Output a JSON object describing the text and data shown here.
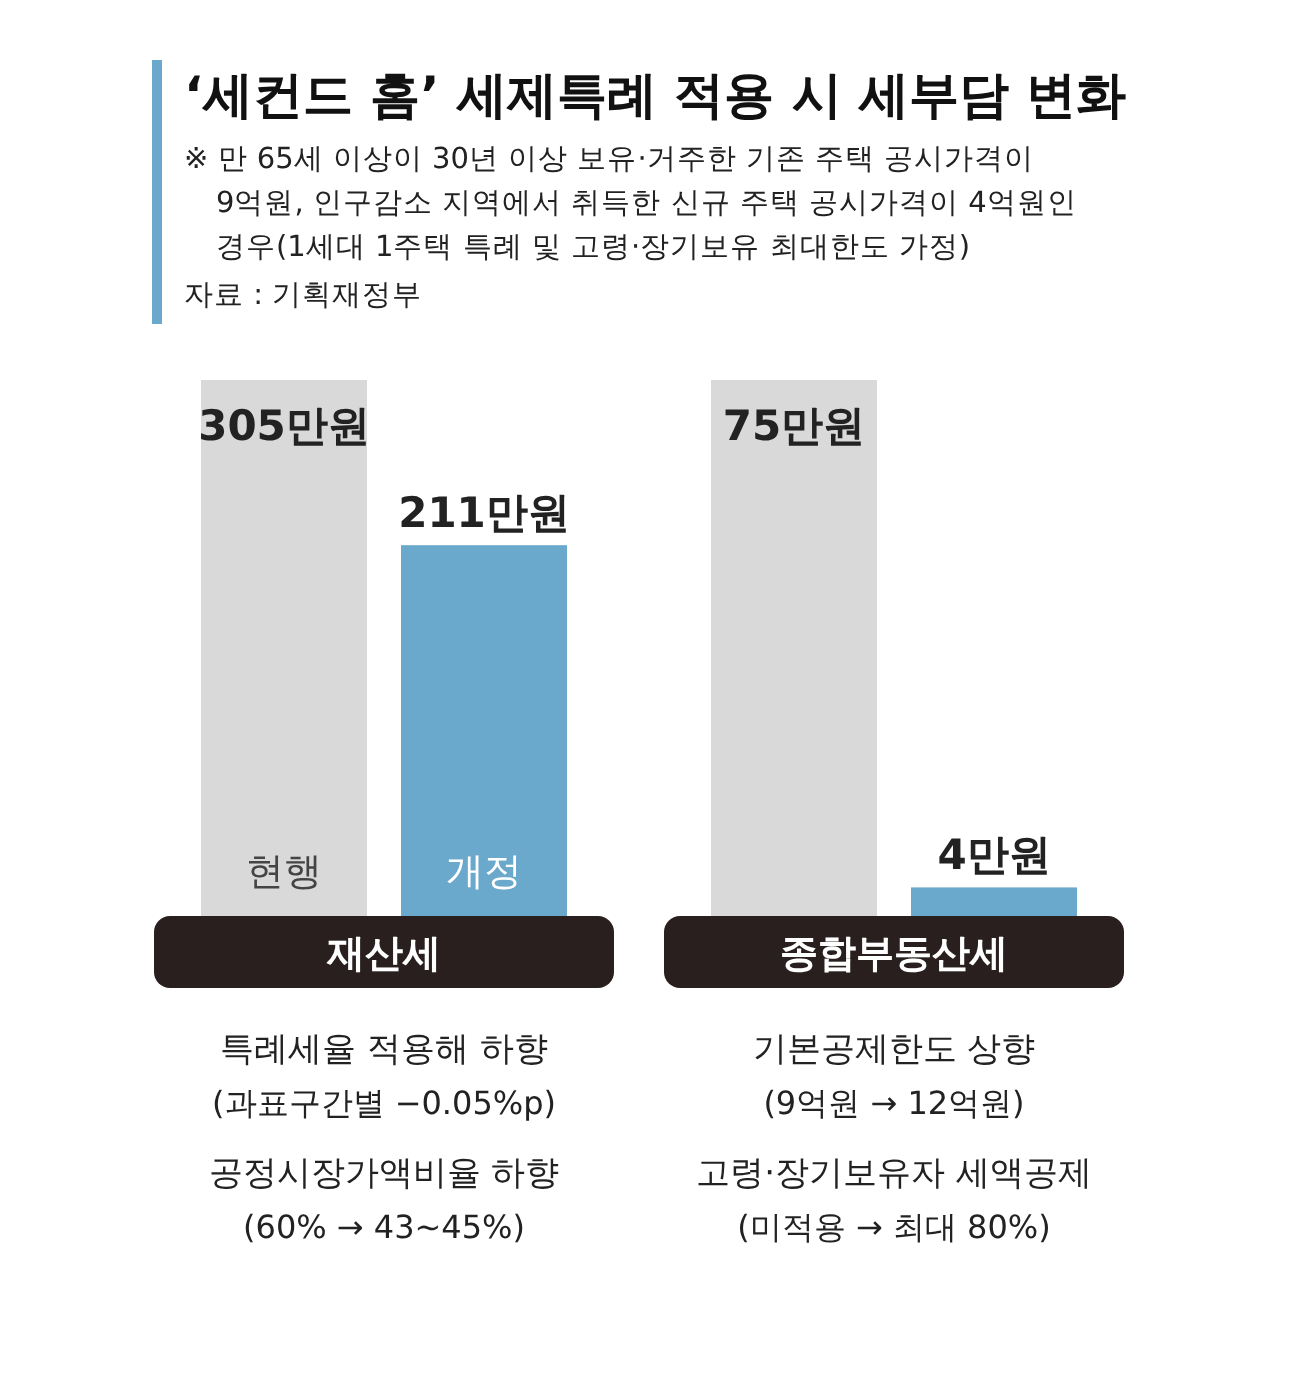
{
  "chart_data": [
    {
      "type": "bar",
      "title": "‘세컨드 홈’ 세제특례 적용 시 세부담 변화",
      "subtitle": "※ 만 65세 이상이 30년 이상 보유·거주한 기존 주택 공시가격이 9억원, 인구감소 지역에서 취득한 신규 주택 공시가격이 4억원인 경우(1세대 1주택 특례 및 고령·장기보유 최대한도 가정)",
      "xlabel": "재산세",
      "categories": [
        "현행",
        "개정"
      ],
      "values": [
        305,
        211
      ],
      "colors": [
        "#d9d9d9",
        "#6aa8cc"
      ],
      "value_labels": [
        "305만원",
        "211만원"
      ],
      "annotations": [
        "자료 : 기획재정부",
        "특례세율 적용해 하향",
        "(과표구간별 −0.05%p)",
        "공정시장가액비율 하향",
        "(60% → 43~45%)"
      ]
    },
    {
      "type": "bar",
      "xlabel": "종합부동산세",
      "categories": [
        null,
        null
      ],
      "values": [
        75,
        4
      ],
      "colors": [
        "#d9d9d9",
        "#6aa8cc"
      ],
      "value_labels": [
        "75만원",
        "4만원"
      ],
      "annotations": [
        "기본공제한도 상향",
        "(9억원 → 12억원)",
        "고령·장기보유자 세액공제",
        "(미적용 → 최대 80%)"
      ]
    }
  ]
}
